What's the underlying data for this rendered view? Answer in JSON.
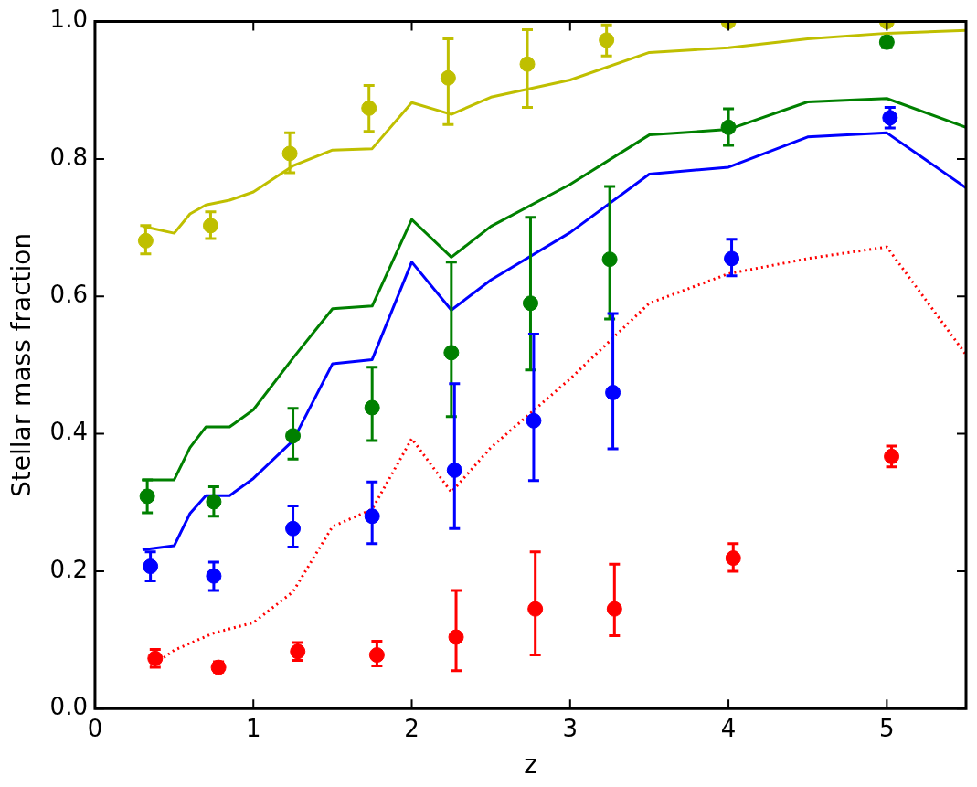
{
  "chart_data": {
    "type": "line",
    "xlabel": "z",
    "ylabel": "Stellar mass fraction",
    "xlim": [
      0,
      5.5
    ],
    "ylim": [
      0,
      1
    ],
    "xticks": [
      0,
      1,
      2,
      3,
      4,
      5
    ],
    "yticks": [
      {
        "value": 0,
        "label": "0.0"
      },
      0.2,
      0.4,
      0.6,
      0.8,
      {
        "value": 1,
        "label": "1.0"
      }
    ],
    "grid": false,
    "legend": false,
    "series": [
      {
        "color": "#bfbf00",
        "marker": "none",
        "line_style": "solid",
        "x": [
          0.3,
          0.5,
          0.6,
          0.7,
          0.85,
          1.0,
          1.25,
          1.5,
          1.75,
          2.0,
          2.25,
          2.5,
          3.0,
          3.5,
          4.0,
          4.5,
          5.0,
          5.5
        ],
        "values": [
          0.702,
          0.692,
          0.72,
          0.733,
          0.74,
          0.752,
          0.79,
          0.813,
          0.815,
          0.882,
          0.865,
          0.89,
          0.915,
          0.955,
          0.962,
          0.975,
          0.983,
          0.987
        ]
      },
      {
        "color": "#008000",
        "marker": "none",
        "line_style": "solid",
        "x": [
          0.3,
          0.5,
          0.6,
          0.7,
          0.85,
          1.0,
          1.25,
          1.5,
          1.75,
          2.0,
          2.25,
          2.5,
          3.0,
          3.5,
          4.0,
          4.5,
          5.0,
          5.5
        ],
        "values": [
          0.333,
          0.333,
          0.38,
          0.41,
          0.41,
          0.435,
          0.51,
          0.582,
          0.586,
          0.712,
          0.657,
          0.702,
          0.763,
          0.835,
          0.843,
          0.883,
          0.888,
          0.846
        ]
      },
      {
        "color": "#0000ff",
        "marker": "none",
        "line_style": "solid",
        "x": [
          0.3,
          0.5,
          0.6,
          0.7,
          0.85,
          1.0,
          1.25,
          1.5,
          1.75,
          2.0,
          2.25,
          2.5,
          3.0,
          3.5,
          4.0,
          4.5,
          5.0,
          5.5
        ],
        "values": [
          0.231,
          0.237,
          0.284,
          0.31,
          0.31,
          0.335,
          0.39,
          0.502,
          0.508,
          0.65,
          0.58,
          0.624,
          0.693,
          0.778,
          0.788,
          0.832,
          0.838,
          0.758
        ]
      },
      {
        "color": "#ff0000",
        "marker": "none",
        "line_style": "dotted",
        "x": [
          0.35,
          0.5,
          0.75,
          1.0,
          1.25,
          1.5,
          1.75,
          2.0,
          2.25,
          2.5,
          3.0,
          3.5,
          4.0,
          4.5,
          5.0,
          5.5
        ],
        "values": [
          0.06,
          0.085,
          0.11,
          0.125,
          0.17,
          0.265,
          0.29,
          0.393,
          0.315,
          0.38,
          0.48,
          0.59,
          0.633,
          0.655,
          0.672,
          0.515
        ]
      },
      {
        "type": "scatter",
        "color": "#bfbf00",
        "marker": "circle",
        "x": [
          0.32,
          0.73,
          1.23,
          1.73,
          2.23,
          2.73,
          3.23,
          4.0,
          5.0
        ],
        "values": [
          0.681,
          0.703,
          0.808,
          0.874,
          0.918,
          0.938,
          0.973,
          1.0,
          1.0
        ],
        "errors": [
          [
            0.662,
            0.703
          ],
          [
            0.684,
            0.723
          ],
          [
            0.78,
            0.838
          ],
          [
            0.84,
            0.907
          ],
          [
            0.85,
            0.975
          ],
          [
            0.875,
            0.988
          ],
          [
            0.95,
            0.995
          ],
          null,
          null
        ]
      },
      {
        "type": "scatter",
        "color": "#008000",
        "marker": "circle",
        "x": [
          0.33,
          0.75,
          1.25,
          1.75,
          2.25,
          2.75,
          3.25,
          4.0,
          5.0
        ],
        "values": [
          0.309,
          0.301,
          0.397,
          0.438,
          0.518,
          0.59,
          0.654,
          0.846,
          0.97
        ],
        "errors": [
          [
            0.285,
            0.333
          ],
          [
            0.28,
            0.323
          ],
          [
            0.363,
            0.437
          ],
          [
            0.39,
            0.497
          ],
          [
            0.425,
            0.65
          ],
          [
            0.493,
            0.715
          ],
          [
            0.567,
            0.76
          ],
          [
            0.82,
            0.873
          ],
          [
            0.962,
            0.978
          ]
        ]
      },
      {
        "type": "scatter",
        "color": "#0000ff",
        "marker": "circle",
        "x": [
          0.35,
          0.75,
          1.25,
          1.75,
          2.27,
          2.77,
          3.27,
          4.02,
          5.02
        ],
        "values": [
          0.207,
          0.193,
          0.262,
          0.28,
          0.347,
          0.419,
          0.46,
          0.655,
          0.86
        ],
        "errors": [
          [
            0.186,
            0.228
          ],
          [
            0.172,
            0.213
          ],
          [
            0.235,
            0.295
          ],
          [
            0.24,
            0.33
          ],
          [
            0.262,
            0.473
          ],
          [
            0.332,
            0.545
          ],
          [
            0.378,
            0.575
          ],
          [
            0.63,
            0.683
          ],
          [
            0.845,
            0.875
          ]
        ]
      },
      {
        "type": "scatter",
        "color": "#ff0000",
        "marker": "circle",
        "x": [
          0.38,
          0.78,
          1.28,
          1.78,
          2.28,
          2.78,
          3.28,
          4.03,
          5.03
        ],
        "values": [
          0.073,
          0.06,
          0.083,
          0.078,
          0.104,
          0.145,
          0.145,
          0.219,
          0.367
        ],
        "errors": [
          [
            0.06,
            0.086
          ],
          [
            0.053,
            0.068
          ],
          [
            0.07,
            0.096
          ],
          [
            0.062,
            0.098
          ],
          [
            0.055,
            0.172
          ],
          [
            0.078,
            0.228
          ],
          [
            0.106,
            0.21
          ],
          [
            0.2,
            0.24
          ],
          [
            0.352,
            0.382
          ]
        ]
      }
    ]
  }
}
